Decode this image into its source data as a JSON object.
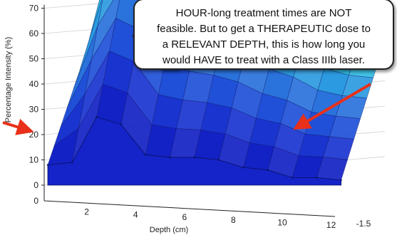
{
  "chart_data": {
    "type": "surface",
    "title": "",
    "ylabel": "Percentage Intensity (%)",
    "xlabel": "Depth (cm)",
    "y_ticks": [
      "0",
      "10",
      "20",
      "30",
      "40",
      "50",
      "60",
      "70"
    ],
    "x_ticks": [
      "2",
      "4",
      "6",
      "8",
      "10",
      "12"
    ],
    "z_ticks": [
      "-1.5"
    ],
    "x_range": [
      0,
      12
    ],
    "y_range": [
      0,
      70
    ],
    "grid": true,
    "front_profile": {
      "depth": [
        0,
        1,
        2,
        3,
        4,
        5,
        6,
        7,
        8,
        9,
        10,
        11,
        12
      ],
      "intensity": [
        8,
        9,
        27,
        24,
        12,
        11,
        11,
        10,
        7,
        6,
        3,
        3,
        2
      ]
    },
    "colors": {
      "front": "#1424c8",
      "mid": "#2a7ad8",
      "back": "#30d8e0",
      "peak": "#7ee07a",
      "arrow": "#e8301a"
    }
  },
  "callout": {
    "lines": [
      "HOUR-long treatment times are NOT",
      "feasible. But to get a THERAPEUTIC dose to",
      "a RELEVANT DEPTH, this is how long you",
      "would HAVE to treat with a Class IIIb laser."
    ]
  }
}
